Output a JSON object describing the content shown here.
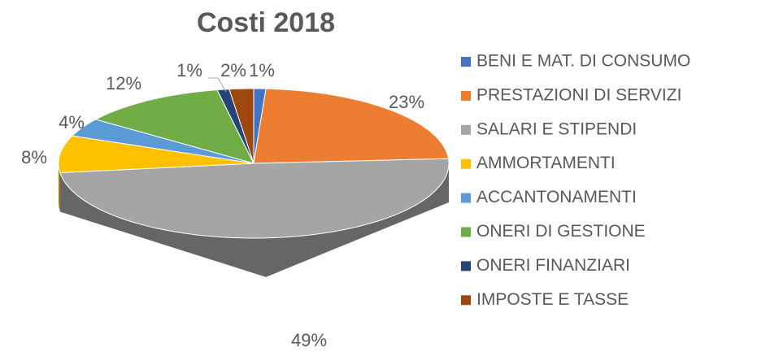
{
  "chart_data": {
    "type": "pie",
    "title": "Costi 2018",
    "categories": [
      "BENI E MAT. DI CONSUMO",
      "PRESTAZIONI DI SERVIZI",
      "SALARI E STIPENDI",
      "AMMORTAMENTI",
      "ACCANTONAMENTI",
      "ONERI DI GESTIONE",
      "ONERI FINANZIARI",
      "IMPOSTE E TASSE"
    ],
    "values": [
      1,
      23,
      49,
      8,
      4,
      12,
      1,
      2
    ],
    "value_labels": [
      "1%",
      "23%",
      "49%",
      "8%",
      "4%",
      "12%",
      "1%",
      "2%"
    ],
    "colors": [
      "#4472c4",
      "#ed7d31",
      "#a5a5a5",
      "#ffc000",
      "#5b9bd5",
      "#70ad47",
      "#264478",
      "#9e480e"
    ],
    "legend": "right"
  }
}
